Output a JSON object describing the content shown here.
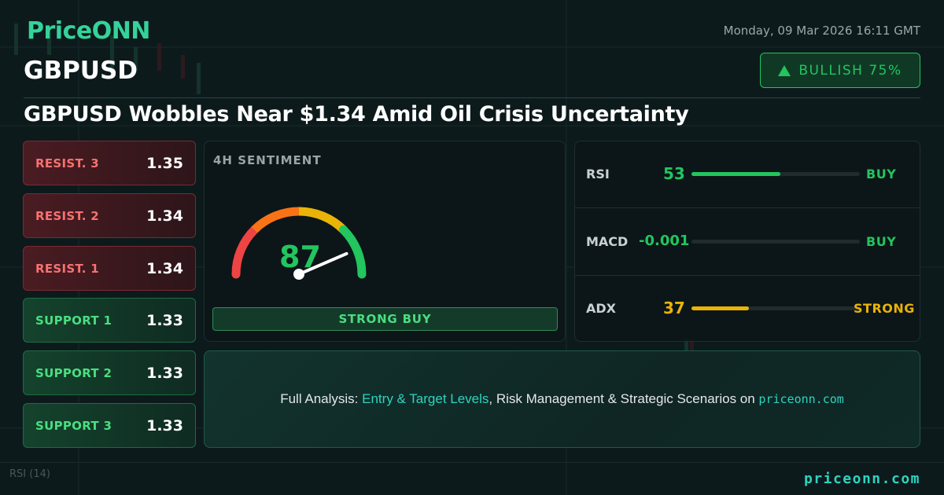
{
  "brand": {
    "name": "PriceONN"
  },
  "symbol": "GBPUSD",
  "datetime": "Monday, 09 Mar 2026 16:11 GMT",
  "bias": {
    "label": "BULLISH 75%",
    "color": "#22c55e"
  },
  "headline": "GBPUSD Wobbles Near $1.34 Amid Oil Crisis Uncertainty",
  "levels": [
    {
      "label": "RESIST. 3",
      "value": "1.35",
      "type": "resistance"
    },
    {
      "label": "RESIST. 2",
      "value": "1.34",
      "type": "resistance"
    },
    {
      "label": "RESIST. 1",
      "value": "1.34",
      "type": "resistance"
    },
    {
      "label": "SUPPORT 1",
      "value": "1.33",
      "type": "support"
    },
    {
      "label": "SUPPORT 2",
      "value": "1.33",
      "type": "support"
    },
    {
      "label": "SUPPORT 3",
      "value": "1.33",
      "type": "support"
    }
  ],
  "sentiment": {
    "title": "4H SENTIMENT",
    "value": "87",
    "value_number": 87,
    "signal": "STRONG BUY",
    "gauge_colors": [
      "#ef4444",
      "#f97316",
      "#eab308",
      "#22c55e"
    ]
  },
  "indicators": [
    {
      "name": "RSI",
      "value": "53",
      "signal": "BUY",
      "fill_fraction": 0.53,
      "color": "#22c55e"
    },
    {
      "name": "MACD",
      "value": "-0.001",
      "signal": "BUY",
      "fill_fraction": 0.0,
      "color": "#22c55e"
    },
    {
      "name": "ADX",
      "value": "37",
      "signal": "STRONG",
      "fill_fraction": 0.34,
      "color": "#eab308"
    }
  ],
  "cta": {
    "prefix": "Full Analysis: ",
    "highlight": "Entry & Target Levels",
    "middle": ", Risk Management & Strategic Scenarios on ",
    "site": "priceonn.com"
  },
  "footer": {
    "site": "priceonn.com",
    "indicator_label": "RSI  (14)"
  },
  "colors": {
    "accent": "#2dd4bf",
    "buy": "#22c55e",
    "sell": "#f87171",
    "neutral": "#eab308"
  }
}
